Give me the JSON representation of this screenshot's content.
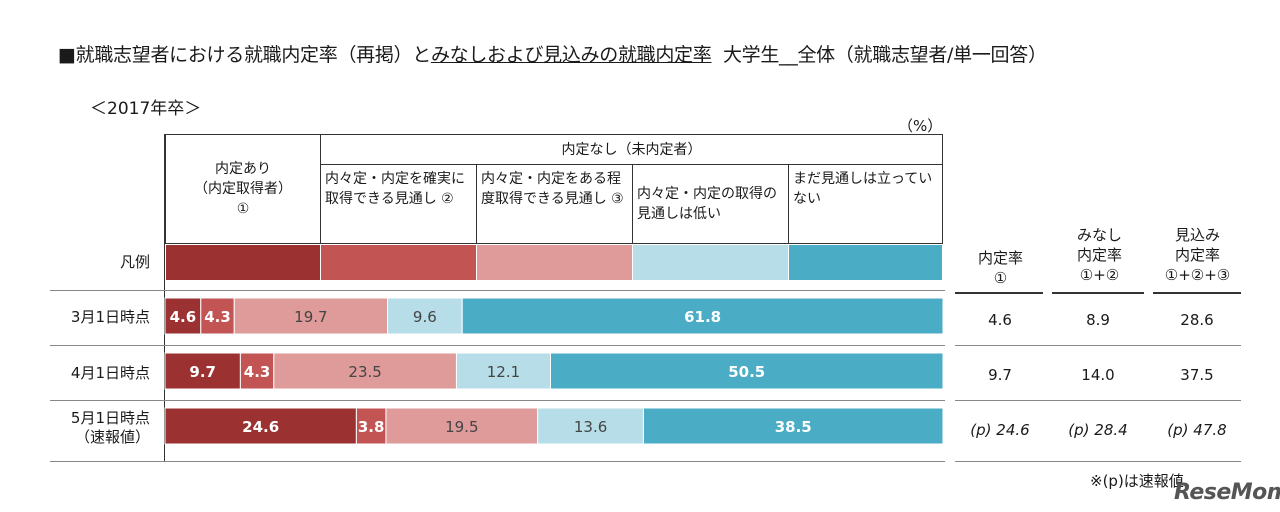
{
  "title_part1": "■就職志望者における就職内定率（再掲）と",
  "title_part2": "みなしおよび見込みの就職内定率",
  "title_part3": "大学生__全体（就職志望者/単一回答）",
  "subtitle": "＜2017年卒＞",
  "unit": "（%）",
  "headers": {
    "naitei_ari": "内定あり\n（内定取得者）\n①",
    "naitei_nashi": "内定なし（未内定者）",
    "sub1": "内々定・内定を確実に取得できる見通し ②",
    "sub2": "内々定・内定をある程度取得できる見通し ③",
    "sub3": "内々定・内定の取得の見通しは低い",
    "sub4": "まだ見通しは立っていない"
  },
  "legend_label": "凡例",
  "right_headers": {
    "rate": "内定率\n①",
    "minashi": "みなし\n内定率\n①+②",
    "mikomi": "見込み\n内定率\n①+②+③"
  },
  "colors": [
    "#9b3131",
    "#c25454",
    "#df9a9a",
    "#b6dde8",
    "#4bacc6"
  ],
  "chart_data": {
    "type": "bar",
    "orientation": "horizontal",
    "stacked": true,
    "normalized": true,
    "categories": [
      "3月1日時点",
      "4月1日時点",
      "5月1日時点\n（速報値）"
    ],
    "series": [
      {
        "name": "内定あり（内定取得者）①",
        "values": [
          4.6,
          9.7,
          24.6
        ]
      },
      {
        "name": "内々定・内定を確実に取得できる見通し ②",
        "values": [
          4.3,
          4.3,
          3.8
        ]
      },
      {
        "name": "内々定・内定をある程度取得できる見通し ③",
        "values": [
          19.7,
          23.5,
          19.5
        ]
      },
      {
        "name": "内々定・内定の取得の見通しは低い",
        "values": [
          9.6,
          12.1,
          13.6
        ]
      },
      {
        "name": "まだ見通しは立っていない",
        "values": [
          61.8,
          50.5,
          38.5
        ]
      }
    ],
    "data_labels": [
      [
        "4.6",
        "4.3",
        "19.7",
        "9.6",
        "61.8"
      ],
      [
        "9.7",
        "4.3",
        "23.5",
        "12.1",
        "50.5"
      ],
      [
        "24.6",
        "3.8",
        "19.5",
        "13.6",
        "38.5"
      ]
    ],
    "xlim": [
      0,
      100
    ]
  },
  "rates": [
    {
      "rate": "4.6",
      "minashi": "8.9",
      "mikomi": "28.6"
    },
    {
      "rate": "9.7",
      "minashi": "14.0",
      "mikomi": "37.5"
    },
    {
      "rate": "(p) 24.6",
      "minashi": "(p) 28.4",
      "mikomi": "(p) 47.8"
    }
  ],
  "note": "※(p)は速報値",
  "logo": "ReseMom"
}
